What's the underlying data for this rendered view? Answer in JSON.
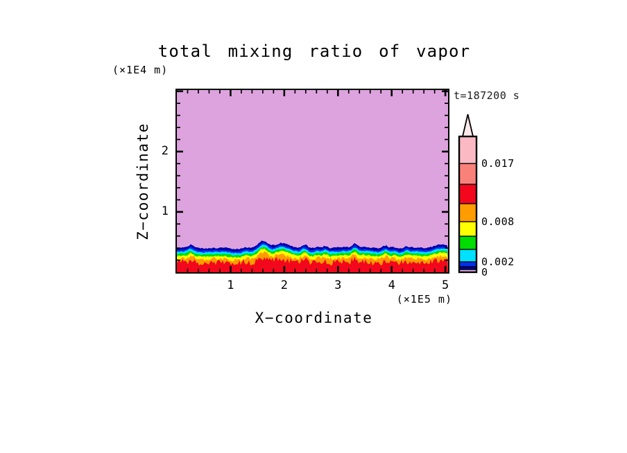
{
  "title": "total mixing ratio of vapor",
  "time_label": "t=187200 s",
  "x_axis": {
    "title": "X−coordinate",
    "unit_label": "(×1E5 m)",
    "tick_labels": [
      "1",
      "2",
      "3",
      "4",
      "5"
    ]
  },
  "z_axis": {
    "title": "Z−coordinate",
    "unit_label": "(×1E4 m)",
    "tick_labels": [
      "1",
      "2"
    ]
  },
  "colorbar": {
    "arrow_color": "#FCE9EB",
    "bands": [
      {
        "color": "#D9A7DC",
        "h": 4
      },
      {
        "color": "#0000A8",
        "h": 4
      },
      {
        "color": "#0030F0",
        "h": 7
      },
      {
        "color": "#00E0FF",
        "h": 18
      },
      {
        "color": "#00DD00",
        "h": 19
      },
      {
        "color": "#FFFF00",
        "h": 21
      },
      {
        "color": "#FF9C00",
        "h": 26
      },
      {
        "color": "#F2071C",
        "h": 28
      },
      {
        "color": "#F8827A",
        "h": 30
      },
      {
        "color": "#FBB9C3",
        "h": 39
      }
    ],
    "labels": [
      {
        "text": "0.017",
        "boundary": 9
      },
      {
        "text": "0.008",
        "boundary": 6
      },
      {
        "text": "0.002",
        "boundary": 3
      },
      {
        "text": "0",
        "boundary": 0
      }
    ]
  },
  "chart_data": {
    "type": "heatmap",
    "title": "total mixing ratio of vapor",
    "xlabel": "X−coordinate (×1E5 m)",
    "ylabel": "Z−coordinate (×1E4 m)",
    "time": "t=187200 s",
    "background_color": "#DDA3DE",
    "background_meaning": "lowest mixing-ratio band (below 0.002) filling the domain above the surface layer",
    "levels_labeled": [
      0,
      0.002,
      0.008,
      0.017
    ],
    "x_axis": {
      "max_units": 5.05,
      "major_ticks": [
        1,
        2,
        3,
        4,
        5
      ],
      "minor_step": 0.2,
      "unit": "1E5 m"
    },
    "z_axis": {
      "max_units": 3.02,
      "major_ticks": [
        1,
        2
      ],
      "minor_step": 0.2,
      "unit": "1E4 m"
    },
    "surface_layers": [
      {
        "name": "navy-band",
        "color": "#0000A8",
        "top_units": 0.4,
        "follow": 1.0,
        "jag": 1.0
      },
      {
        "name": "blue-band",
        "color": "#0030F0",
        "top_units": 0.365,
        "follow": 1.0,
        "jag": 0.8
      },
      {
        "name": "cyan-band",
        "color": "#00E0FF",
        "top_units": 0.335,
        "follow": 1.0,
        "jag": 0.8
      },
      {
        "name": "green-band",
        "color": "#00DD00",
        "top_units": 0.3,
        "follow": 1.0,
        "jag": 0.9
      },
      {
        "name": "yellow-band",
        "color": "#FFFF00",
        "top_units": 0.265,
        "follow": 1.0,
        "jag": 1.1
      },
      {
        "name": "orange-band",
        "color": "#FF9C00",
        "top_units": 0.22,
        "follow": 0.9,
        "jag": 2.5
      },
      {
        "name": "red-band",
        "color": "#F2071C",
        "top_units": 0.16,
        "follow": 0.7,
        "jag": 4.5
      }
    ],
    "surface_layer_meaning": "mixing ratio increases toward the surface: thin stratified contour bands (0.002→0.017+) confined below z≈0.4×1E4 m, red (highest values) at the ground with jagged convective texture"
  }
}
